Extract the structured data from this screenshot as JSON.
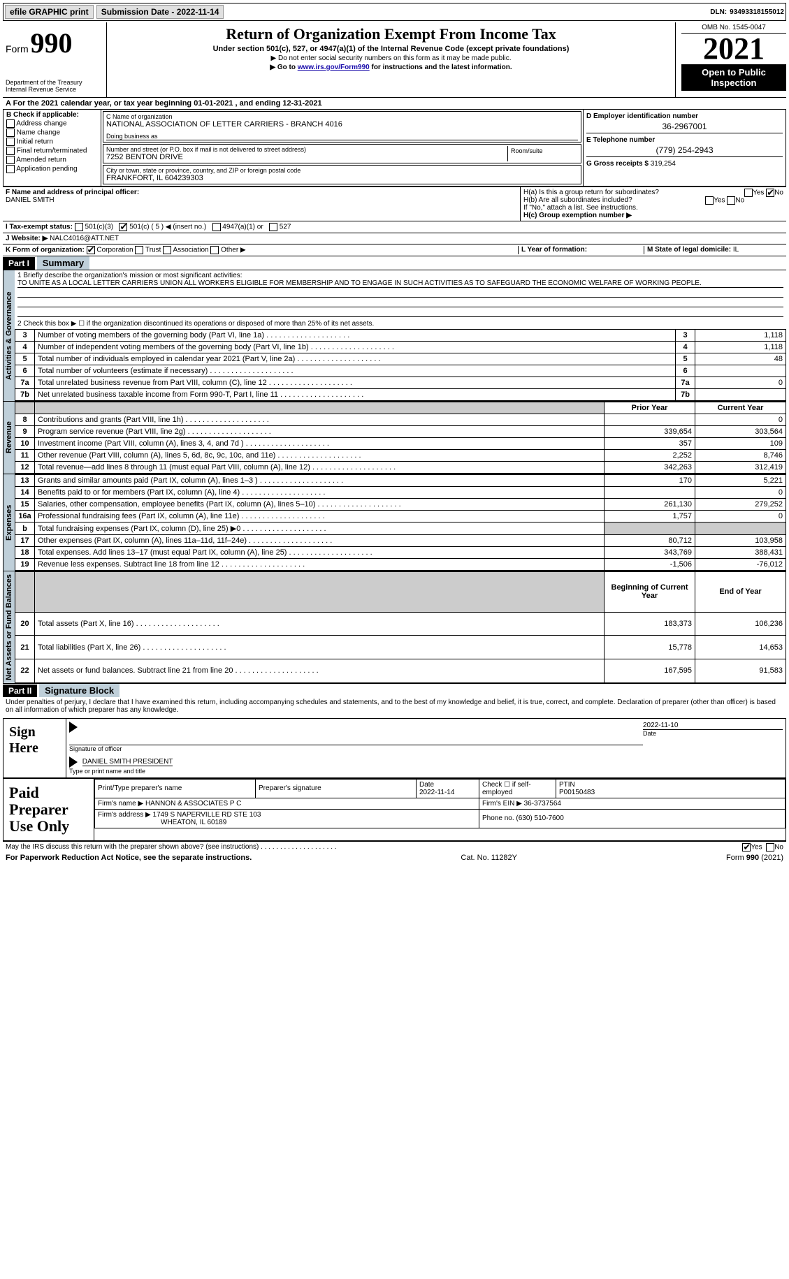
{
  "topbar": {
    "efile": "efile GRAPHIC print",
    "submission": "Submission Date - 2022-11-14",
    "dln_label": "DLN:",
    "dln": "93493318155012"
  },
  "header": {
    "form_word": "Form",
    "form_num": "990",
    "title": "Return of Organization Exempt From Income Tax",
    "subtitle": "Under section 501(c), 527, or 4947(a)(1) of the Internal Revenue Code (except private foundations)",
    "note1": "▶ Do not enter social security numbers on this form as it may be made public.",
    "note2_pre": "▶ Go to ",
    "note2_link": "www.irs.gov/Form990",
    "note2_post": " for instructions and the latest information.",
    "dept": "Department of the Treasury\nInternal Revenue Service",
    "omb": "OMB No. 1545-0047",
    "year": "2021",
    "open": "Open to Public Inspection"
  },
  "period": "A For the 2021 calendar year, or tax year beginning 01-01-2021   , and ending 12-31-2021",
  "boxB": {
    "title": "B Check if applicable:",
    "items": [
      "Address change",
      "Name change",
      "Initial return",
      "Final return/terminated",
      "Amended return",
      "Application pending"
    ]
  },
  "boxC": {
    "name_lbl": "C Name of organization",
    "name": "NATIONAL ASSOCIATION OF LETTER CARRIERS - BRANCH 4016",
    "dba_lbl": "Doing business as",
    "dba": "",
    "addr_lbl": "Number and street (or P.O. box if mail is not delivered to street address)",
    "room_lbl": "Room/suite",
    "addr": "7252 BENTON DRIVE",
    "city_lbl": "City or town, state or province, country, and ZIP or foreign postal code",
    "city": "FRANKFORT, IL  604239303"
  },
  "boxD": {
    "lbl": "D Employer identification number",
    "val": "36-2967001"
  },
  "boxE": {
    "lbl": "E Telephone number",
    "val": "(779) 254-2943"
  },
  "boxG": {
    "lbl": "G Gross receipts $",
    "val": "319,254"
  },
  "boxF": {
    "lbl": "F Name and address of principal officer:",
    "val": "DANIEL SMITH"
  },
  "boxH": {
    "a": "H(a)  Is this a group return for subordinates?",
    "b": "H(b)  Are all subordinates included?",
    "bnote": "If \"No,\" attach a list. See instructions.",
    "c": "H(c)  Group exemption number ▶",
    "yes": "Yes",
    "no": "No"
  },
  "rowI": {
    "lbl": "I   Tax-exempt status:",
    "opts": [
      "501(c)(3)",
      "501(c) ( 5 ) ◀ (insert no.)",
      "4947(a)(1) or",
      "527"
    ]
  },
  "rowJ": {
    "lbl": "J   Website: ▶",
    "val": "NALC4016@ATT.NET"
  },
  "rowK": {
    "lbl": "K Form of organization:",
    "opts": [
      "Corporation",
      "Trust",
      "Association",
      "Other ▶"
    ]
  },
  "rowL": {
    "lbl": "L Year of formation:"
  },
  "rowM": {
    "lbl": "M State of legal domicile:",
    "val": "IL"
  },
  "part1": {
    "hdr": "Part I",
    "title": "Summary"
  },
  "summary": {
    "q1_lbl": "1   Briefly describe the organization's mission or most significant activities:",
    "q1_val": "TO UNITE AS A LOCAL LETTER CARRIERS UNION ALL WORKERS ELIGIBLE FOR MEMBERSHIP AND TO ENGAGE IN SUCH ACTIVITIES AS TO SAFEGUARD THE ECONOMIC WELFARE OF WORKING PEOPLE.",
    "q2": "2   Check this box ▶ ☐  if the organization discontinued its operations or disposed of more than 25% of its net assets.",
    "sec_act": "Activities & Governance",
    "sec_rev": "Revenue",
    "sec_exp": "Expenses",
    "sec_net": "Net Assets or Fund Balances",
    "rows_act": [
      {
        "n": "3",
        "t": "Number of voting members of the governing body (Part VI, line 1a)",
        "v": "1,118"
      },
      {
        "n": "4",
        "t": "Number of independent voting members of the governing body (Part VI, line 1b)",
        "v": "1,118"
      },
      {
        "n": "5",
        "t": "Total number of individuals employed in calendar year 2021 (Part V, line 2a)",
        "v": "48"
      },
      {
        "n": "6",
        "t": "Total number of volunteers (estimate if necessary)",
        "v": ""
      },
      {
        "n": "7a",
        "t": "Total unrelated business revenue from Part VIII, column (C), line 12",
        "v": "0"
      },
      {
        "n": "7b",
        "t": "Net unrelated business taxable income from Form 990-T, Part I, line 11",
        "v": ""
      }
    ],
    "col_prior": "Prior Year",
    "col_curr": "Current Year",
    "rows_rev": [
      {
        "n": "8",
        "t": "Contributions and grants (Part VIII, line 1h)",
        "p": "",
        "c": "0"
      },
      {
        "n": "9",
        "t": "Program service revenue (Part VIII, line 2g)",
        "p": "339,654",
        "c": "303,564"
      },
      {
        "n": "10",
        "t": "Investment income (Part VIII, column (A), lines 3, 4, and 7d )",
        "p": "357",
        "c": "109"
      },
      {
        "n": "11",
        "t": "Other revenue (Part VIII, column (A), lines 5, 6d, 8c, 9c, 10c, and 11e)",
        "p": "2,252",
        "c": "8,746"
      },
      {
        "n": "12",
        "t": "Total revenue—add lines 8 through 11 (must equal Part VIII, column (A), line 12)",
        "p": "342,263",
        "c": "312,419"
      }
    ],
    "rows_exp": [
      {
        "n": "13",
        "t": "Grants and similar amounts paid (Part IX, column (A), lines 1–3 )",
        "p": "170",
        "c": "5,221"
      },
      {
        "n": "14",
        "t": "Benefits paid to or for members (Part IX, column (A), line 4)",
        "p": "",
        "c": "0"
      },
      {
        "n": "15",
        "t": "Salaries, other compensation, employee benefits (Part IX, column (A), lines 5–10)",
        "p": "261,130",
        "c": "279,252"
      },
      {
        "n": "16a",
        "t": "Professional fundraising fees (Part IX, column (A), line 11e)",
        "p": "1,757",
        "c": "0"
      },
      {
        "n": "b",
        "t": "Total fundraising expenses (Part IX, column (D), line 25) ▶0",
        "p": "grey",
        "c": "grey"
      },
      {
        "n": "17",
        "t": "Other expenses (Part IX, column (A), lines 11a–11d, 11f–24e)",
        "p": "80,712",
        "c": "103,958"
      },
      {
        "n": "18",
        "t": "Total expenses. Add lines 13–17 (must equal Part IX, column (A), line 25)",
        "p": "343,769",
        "c": "388,431"
      },
      {
        "n": "19",
        "t": "Revenue less expenses. Subtract line 18 from line 12",
        "p": "-1,506",
        "c": "-76,012"
      }
    ],
    "col_begin": "Beginning of Current Year",
    "col_end": "End of Year",
    "rows_net": [
      {
        "n": "20",
        "t": "Total assets (Part X, line 16)",
        "p": "183,373",
        "c": "106,236"
      },
      {
        "n": "21",
        "t": "Total liabilities (Part X, line 26)",
        "p": "15,778",
        "c": "14,653"
      },
      {
        "n": "22",
        "t": "Net assets or fund balances. Subtract line 21 from line 20",
        "p": "167,595",
        "c": "91,583"
      }
    ]
  },
  "part2": {
    "hdr": "Part II",
    "title": "Signature Block"
  },
  "sig": {
    "decl": "Under penalties of perjury, I declare that I have examined this return, including accompanying schedules and statements, and to the best of my knowledge and belief, it is true, correct, and complete. Declaration of preparer (other than officer) is based on all information of which preparer has any knowledge.",
    "sign_here": "Sign Here",
    "sig_officer": "Signature of officer",
    "date": "2022-11-10",
    "date_lbl": "Date",
    "name": "DANIEL SMITH  PRESIDENT",
    "name_lbl": "Type or print name and title"
  },
  "prep": {
    "title": "Paid Preparer Use Only",
    "h1": "Print/Type preparer's name",
    "h2": "Preparer's signature",
    "h3": "Date",
    "h3v": "2022-11-14",
    "h4": "Check ☐ if self-employed",
    "h5": "PTIN",
    "h5v": "P00150483",
    "firm_lbl": "Firm's name      ▶",
    "firm": "HANNON & ASSOCIATES P C",
    "ein_lbl": "Firm's EIN ▶",
    "ein": "36-3737564",
    "addr_lbl": "Firm's address ▶",
    "addr1": "1749 S NAPERVILLE RD STE 103",
    "addr2": "WHEATON, IL  60189",
    "phone_lbl": "Phone no.",
    "phone": "(630) 510-7600"
  },
  "discuss": {
    "q": "May the IRS discuss this return with the preparer shown above? (see instructions)",
    "yes": "Yes",
    "no": "No"
  },
  "footer": {
    "left": "For Paperwork Reduction Act Notice, see the separate instructions.",
    "mid": "Cat. No. 11282Y",
    "right": "Form 990 (2021)"
  },
  "colors": {
    "section_bg": "#bfcfd9",
    "link": "#1a0dab"
  }
}
